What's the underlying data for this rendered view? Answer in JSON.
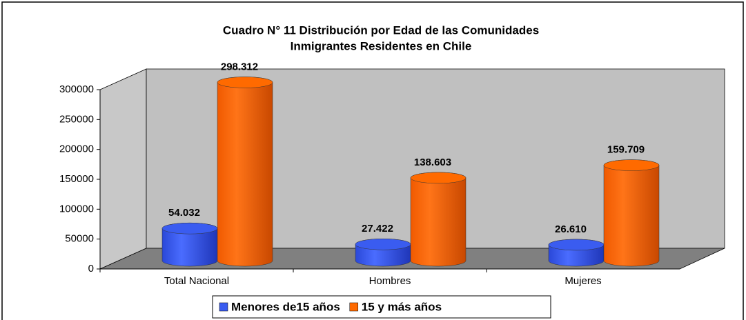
{
  "chart_data": {
    "type": "bar3d",
    "title": [
      "Cuadro N° 11 Distribución por Edad de las Comunidades",
      "Inmigrantes Residentes en Chile"
    ],
    "categories": [
      "Total Nacional",
      "Hombres",
      "Mujeres"
    ],
    "series": [
      {
        "name": "Menores de15 años",
        "color": "#3a5cf0",
        "values": [
          54032,
          27422,
          26610
        ],
        "value_labels": [
          "54.032",
          "27.422",
          "26.610"
        ]
      },
      {
        "name": "15 y más años",
        "color": "#ff6a00",
        "values": [
          298312,
          138603,
          159709
        ],
        "value_labels": [
          "298.312",
          "138.603",
          "159.709"
        ]
      }
    ],
    "ylim": [
      0,
      300000
    ],
    "yticks": [
      0,
      50000,
      100000,
      150000,
      200000,
      250000,
      300000
    ],
    "legend": "bottom"
  }
}
